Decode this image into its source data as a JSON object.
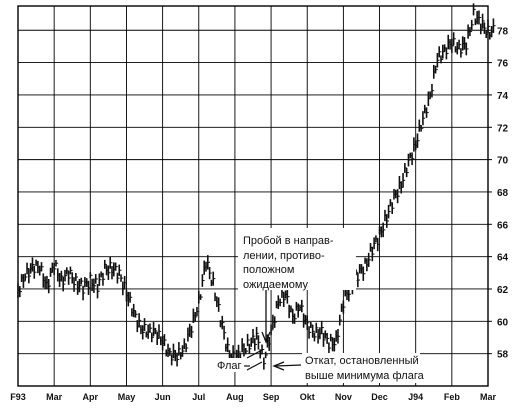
{
  "chart_data": {
    "type": "bar",
    "subtype": "ohlc-price-bars",
    "title": "",
    "xlabel": "",
    "ylabel": "",
    "ylim": [
      56,
      79.5
    ],
    "y_ticks": [
      58,
      60,
      62,
      64,
      66,
      68,
      70,
      72,
      74,
      76,
      78
    ],
    "y_axis_side": "right",
    "x_tick_labels": [
      "F93",
      "Mar",
      "Apr",
      "May",
      "Jun",
      "Jul",
      "Aug",
      "Sep",
      "Okt",
      "Nov",
      "Dec",
      "J94",
      "Feb",
      "Mar"
    ],
    "grid": true,
    "colors": {
      "bars": "#111111",
      "grid": "#000000",
      "background": "#ffffff"
    },
    "series": [
      {
        "x_month": [
          0.0,
          0.2,
          0.4,
          0.6,
          0.8,
          1.0,
          1.2,
          1.4,
          1.6,
          1.8,
          2.0,
          2.2,
          2.4,
          2.6,
          2.8,
          3.0,
          3.2,
          3.4,
          3.6,
          3.8,
          4.0,
          4.2,
          4.4,
          4.6,
          4.8,
          5.0,
          5.2,
          5.4,
          5.6,
          5.8,
          6.0,
          6.2,
          6.4,
          6.6,
          6.8,
          7.0,
          7.2,
          7.4,
          7.6,
          7.8,
          8.0,
          8.2,
          8.4,
          8.6,
          8.8,
          9.0,
          9.2,
          9.4,
          9.6,
          9.8,
          10.0,
          10.2,
          10.4,
          10.6,
          10.8,
          11.0,
          11.2,
          11.4,
          11.6,
          11.8,
          12.0,
          12.2,
          12.4,
          12.6,
          12.8,
          13.0,
          13.2
        ],
        "close": [
          61.9,
          62.8,
          63.4,
          63.3,
          62.2,
          63.5,
          62.5,
          63.0,
          62.4,
          62.1,
          62.5,
          62.2,
          63.2,
          63.3,
          62.9,
          61.8,
          60.5,
          59.6,
          59.3,
          59.4,
          58.7,
          58.0,
          57.8,
          58.4,
          59.6,
          61.2,
          63.7,
          62.3,
          60.2,
          58.2,
          57.6,
          58.2,
          58.6,
          59.0,
          57.6,
          59.3,
          61.3,
          61.6,
          60.3,
          60.9,
          59.8,
          59.2,
          59.4,
          58.6,
          58.8,
          61.2,
          62.2,
          62.9,
          63.4,
          64.5,
          65.3,
          66.5,
          67.6,
          68.5,
          69.8,
          71.0,
          72.5,
          74.0,
          76.2,
          76.8,
          77.2,
          76.9,
          77.1,
          79.0,
          78.4,
          77.9,
          78.0
        ]
      }
    ],
    "annotations": [
      {
        "text": "Пробой в направ-"
      },
      {
        "text": "лении, противо-"
      },
      {
        "text": "положном"
      },
      {
        "text": "ожидаемому"
      },
      {
        "text": "Откат, остановленный"
      },
      {
        "text": "выше минимума флага"
      },
      {
        "text": "Флаг"
      }
    ]
  }
}
